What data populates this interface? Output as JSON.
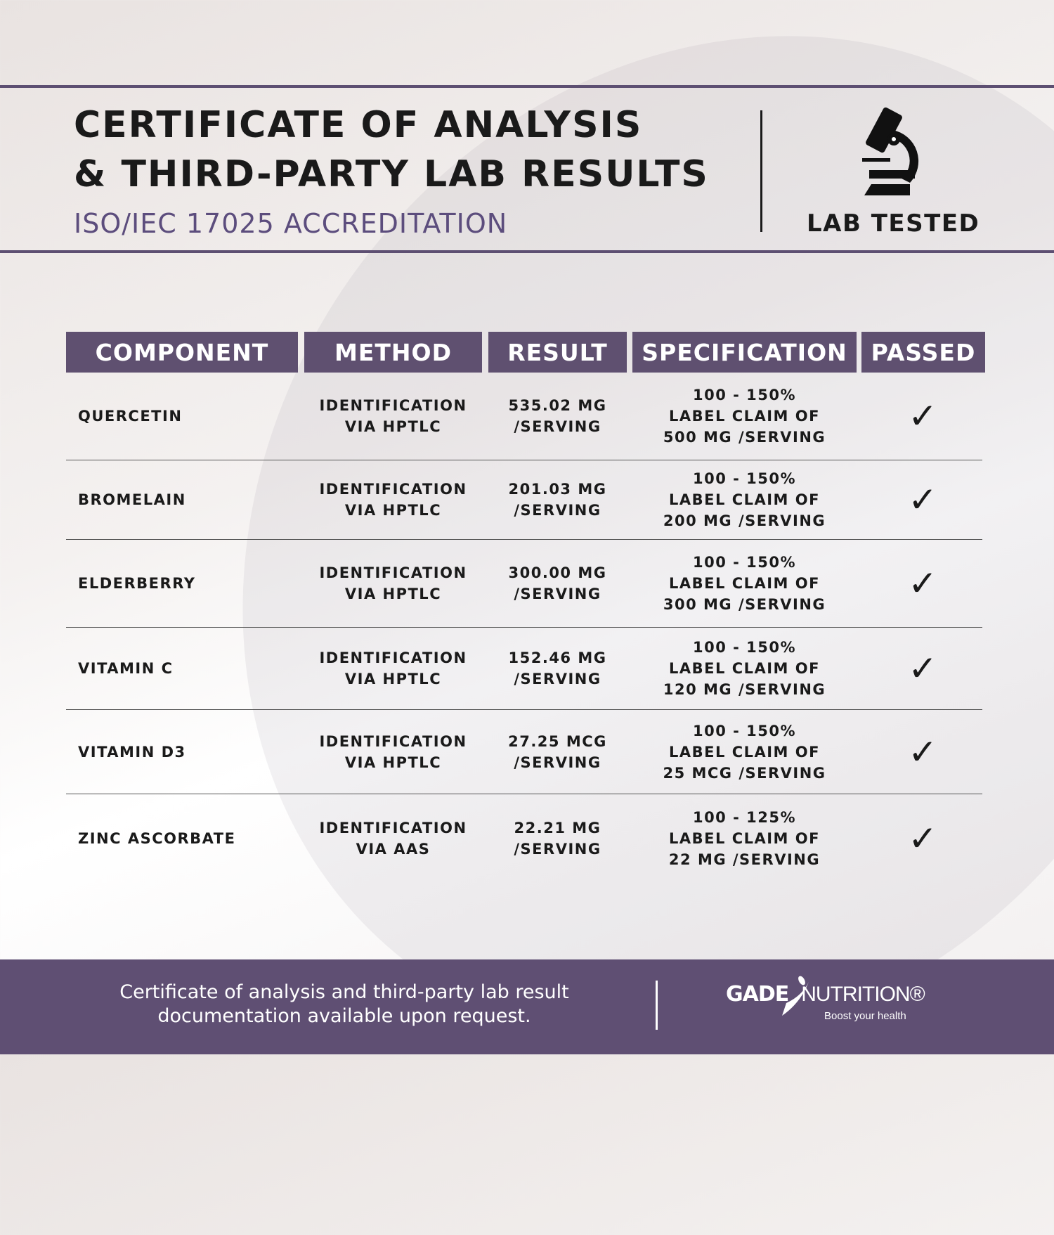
{
  "header": {
    "title_line1": "CERTIFICATE OF ANALYSIS",
    "title_line2": "& THIRD-PARTY LAB RESULTS",
    "subtitle": "ISO/IEC 17025 ACCREDITATION",
    "badge_label": "LAB TESTED",
    "badge_icon": "microscope-icon"
  },
  "table": {
    "columns": [
      "COMPONENT",
      "METHOD",
      "RESULT",
      "SPECIFICATION",
      "PASSED"
    ],
    "rows": [
      {
        "component": "QUERCETIN",
        "method": "IDENTIFICATION\nVIA HPTLC",
        "result": "535.02 MG\n/SERVING",
        "spec": "100 - 150%\nLABEL CLAIM OF\n500 MG /SERVING",
        "passed": "✓"
      },
      {
        "component": "BROMELAIN",
        "method": "IDENTIFICATION\nVIA HPTLC",
        "result": "201.03 MG\n/SERVING",
        "spec": "100 - 150%\nLABEL CLAIM OF\n200 MG /SERVING",
        "passed": "✓"
      },
      {
        "component": "ELDERBERRY",
        "method": "IDENTIFICATION\nVIA HPTLC",
        "result": "300.00 MG\n/SERVING",
        "spec": "100 - 150%\nLABEL CLAIM OF\n300 MG /SERVING",
        "passed": "✓"
      },
      {
        "component": "VITAMIN C",
        "method": "IDENTIFICATION\nVIA HPTLC",
        "result": "152.46 MG\n/SERVING",
        "spec": "100 - 150%\nLABEL CLAIM OF\n120 MG /SERVING",
        "passed": "✓"
      },
      {
        "component": "VITAMIN D3",
        "method": "IDENTIFICATION\nVIA HPTLC",
        "result": "27.25 MCG\n/SERVING",
        "spec": "100 - 150%\nLABEL CLAIM OF\n25 MCG /SERVING",
        "passed": "✓"
      },
      {
        "component": "ZINC ASCORBATE",
        "method": "IDENTIFICATION\nVIA AAS",
        "result": "22.21 MG\n/SERVING",
        "spec": "100 - 125%\nLABEL CLAIM OF\n22 MG /SERVING",
        "passed": "✓"
      }
    ]
  },
  "footer": {
    "text": "Certificate of analysis and third-party lab result\ndocumentation available upon request.",
    "logo_brand_bold": "GADE",
    "logo_brand_light": "NUTRITION®",
    "logo_tagline": "Boost your health"
  },
  "colors": {
    "accent": "#5f4f73",
    "subtitle": "#5c4d7d"
  }
}
